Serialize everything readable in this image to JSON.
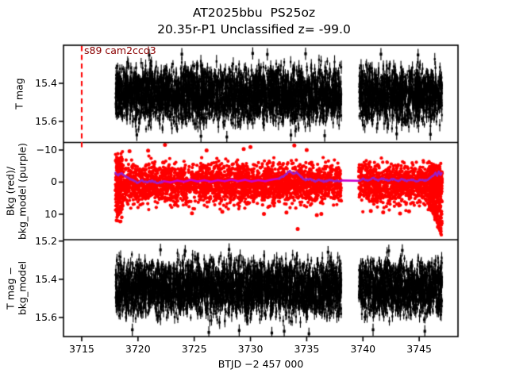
{
  "chart_data": {
    "type": "scatter",
    "title_lines": [
      "AT2025bbu  PS25oz",
      "20.35r-P1 Unclassified z= -99.0"
    ],
    "xlabel": "BTJD −2 457 000",
    "xlim": [
      3713.38,
      3748.45
    ],
    "xticks": [
      3715,
      3720,
      3725,
      3730,
      3735,
      3740,
      3745
    ],
    "xtick_labels": [
      "3715",
      "3720",
      "3725",
      "3730",
      "3735",
      "3740",
      "3745"
    ],
    "grid": false,
    "legend": "none",
    "seed": 1337,
    "segments": [
      [
        3718.0,
        3738.08
      ],
      [
        3739.63,
        3747.04
      ]
    ],
    "panels": [
      {
        "name": "tess-magnitude",
        "ylabel_lines": [
          "T mag"
        ],
        "ylim": [
          15.2,
          15.71
        ],
        "y_inverted": true,
        "yticks": [
          15.4,
          15.6
        ],
        "ytick_labels": [
          "15.4",
          "15.6"
        ],
        "series": {
          "color": "#000000",
          "marker": "point-with-errorbar",
          "center": 15.462,
          "half_width": 0.235,
          "band_half_width": 0.19,
          "n": [
            3300,
            1200
          ],
          "errorbar_mag": 0.02
        },
        "outliers": [
          [
            3721.0,
            15.252
          ],
          [
            3723.9,
            15.247
          ],
          [
            3730.2,
            15.243
          ],
          [
            3731.5,
            15.248
          ],
          [
            3727.9,
            15.682
          ],
          [
            3733.6,
            15.672
          ],
          [
            3741.6,
            15.247
          ],
          [
            3744.9,
            15.251
          ],
          [
            3736.6,
            15.675
          ],
          [
            3746.0,
            15.668
          ],
          [
            3725.6,
            15.678
          ],
          [
            3719.9,
            15.671
          ],
          [
            3734.9,
            15.245
          ],
          [
            3743.0,
            15.666
          ]
        ],
        "annotation": {
          "text": "s89 cam2ccd3",
          "color": "#8b0000",
          "x": 3715.1
        },
        "vline": {
          "x": 3715.0,
          "color": "#ff0000",
          "style": "dashed"
        }
      },
      {
        "name": "background",
        "ylabel_lines": [
          "Bkg (red)/",
          "bkg_model (purple)"
        ],
        "ylim": [
          -12.35,
          17.9
        ],
        "yticks": [
          10,
          0,
          -10
        ],
        "ytick_labels": [
          "10",
          "0",
          "−10"
        ],
        "series": {
          "color": "#ff0000",
          "marker": "dot",
          "dot_radius": 2.1,
          "center": 0.4,
          "half_width": 9.0,
          "band_half_width": 7.0,
          "n": [
            3000,
            1100
          ]
        },
        "start_burst": {
          "x_range": [
            3718.0,
            3718.65
          ],
          "y_range": [
            -9.5,
            12.6
          ],
          "n": 150
        },
        "end_rise": {
          "x_range": [
            3745.85,
            3747.05
          ],
          "y_top_start": 7.5,
          "y_top_end": 17.4,
          "y_bottom_start": -6.5,
          "y_bottom_end": -4.0,
          "n": 330
        },
        "outliers": [
          [
            3719.25,
            -9.6
          ],
          [
            3722.4,
            -11.6
          ],
          [
            3722.65,
            -12.7
          ],
          [
            3729.4,
            -10.3
          ],
          [
            3730.0,
            -10.9
          ],
          [
            3733.9,
            -11.4
          ],
          [
            3734.2,
            14.6
          ],
          [
            3735.0,
            -10.0
          ],
          [
            3724.8,
            9.7
          ],
          [
            3727.5,
            9.2
          ],
          [
            3731.2,
            9.9
          ],
          [
            3733.2,
            9.5
          ],
          [
            3735.9,
            10.3
          ],
          [
            3736.3,
            9.9
          ],
          [
            3740.7,
            9.0
          ],
          [
            3741.8,
            9.4
          ],
          [
            3743.3,
            9.8
          ],
          [
            3744.1,
            9.1
          ],
          [
            3720.9,
            -9.8
          ],
          [
            3726.1,
            -9.9
          ]
        ],
        "model_line": {
          "wiggle_color": "#9b20c8",
          "bridge_color": "#cc00cc",
          "linewidth": 2.6,
          "jitter": 0.45,
          "points": [
            [
              3718.0,
              -2.9
            ],
            [
              3718.25,
              -2.1
            ],
            [
              3718.5,
              -2.7
            ],
            [
              3718.8,
              -2.0
            ],
            [
              3719.1,
              -1.4
            ],
            [
              3719.5,
              -0.6
            ],
            [
              3719.9,
              0.2
            ],
            [
              3720.3,
              -0.5
            ],
            [
              3720.8,
              0.1
            ],
            [
              3721.3,
              -0.4
            ],
            [
              3721.8,
              0.3
            ],
            [
              3722.3,
              -0.3
            ],
            [
              3722.9,
              0.1
            ],
            [
              3723.5,
              -0.5
            ],
            [
              3724.1,
              -0.1
            ],
            [
              3724.7,
              -0.7
            ],
            [
              3725.3,
              -0.2
            ],
            [
              3725.9,
              -0.6
            ],
            [
              3726.5,
              -0.1
            ],
            [
              3727.1,
              -0.6
            ],
            [
              3727.7,
              -0.3
            ],
            [
              3728.3,
              -0.8
            ],
            [
              3728.9,
              -0.3
            ],
            [
              3729.5,
              -0.7
            ],
            [
              3730.1,
              -0.2
            ],
            [
              3730.7,
              -0.6
            ],
            [
              3731.3,
              -0.3
            ],
            [
              3731.9,
              -0.8
            ],
            [
              3732.5,
              -1.1
            ],
            [
              3733.0,
              -2.0
            ],
            [
              3733.5,
              -3.5
            ],
            [
              3733.8,
              -2.6
            ],
            [
              3734.1,
              -3.1
            ],
            [
              3734.5,
              -1.6
            ],
            [
              3734.9,
              -0.6
            ],
            [
              3735.3,
              -1.0
            ],
            [
              3735.7,
              -0.3
            ],
            [
              3736.1,
              -0.7
            ],
            [
              3736.6,
              -0.2
            ],
            [
              3737.1,
              -0.6
            ],
            [
              3737.6,
              -0.3
            ],
            [
              3738.08,
              -0.5
            ],
            [
              3739.63,
              -0.4
            ],
            [
              3740.0,
              -1.1
            ],
            [
              3740.4,
              -0.5
            ],
            [
              3740.9,
              -1.3
            ],
            [
              3741.3,
              -0.6
            ],
            [
              3741.8,
              -1.1
            ],
            [
              3742.2,
              -0.5
            ],
            [
              3742.7,
              -1.0
            ],
            [
              3743.1,
              -0.4
            ],
            [
              3743.5,
              -0.9
            ],
            [
              3743.9,
              -0.3
            ],
            [
              3744.3,
              -0.8
            ],
            [
              3744.7,
              -0.3
            ],
            [
              3745.1,
              -0.7
            ],
            [
              3745.5,
              -0.4
            ],
            [
              3745.9,
              -1.1
            ],
            [
              3746.2,
              -1.9
            ],
            [
              3746.45,
              -2.9
            ],
            [
              3746.6,
              -2.0
            ],
            [
              3746.75,
              -3.3
            ],
            [
              3746.9,
              -2.3
            ],
            [
              3747.0,
              -2.8
            ]
          ]
        }
      },
      {
        "name": "detrended-magnitude",
        "ylabel_lines": [
          "T mag −",
          "bkg_model"
        ],
        "ylim": [
          15.193,
          15.701
        ],
        "y_inverted": true,
        "yticks": [
          15.2,
          15.4,
          15.6
        ],
        "ytick_labels": [
          "15.2",
          "15.4",
          "15.6"
        ],
        "series": {
          "color": "#000000",
          "marker": "point-with-errorbar",
          "center": 15.447,
          "half_width": 0.235,
          "band_half_width": 0.19,
          "n": [
            3300,
            1200
          ],
          "errorbar_mag": 0.02
        },
        "outliers": [
          [
            3722.0,
            15.246
          ],
          [
            3726.3,
            15.678
          ],
          [
            3729.0,
            15.668
          ],
          [
            3724.2,
            15.253
          ],
          [
            3733.0,
            15.672
          ],
          [
            3736.9,
            15.258
          ],
          [
            3740.9,
            15.664
          ],
          [
            3743.5,
            15.249
          ],
          [
            3745.5,
            15.672
          ],
          [
            3731.9,
            15.681
          ],
          [
            3719.5,
            15.664
          ],
          [
            3742.3,
            15.251
          ],
          [
            3735.2,
            15.685
          ],
          [
            3728.1,
            15.244
          ]
        ]
      }
    ]
  },
  "layout_hints": {
    "panel_count": 3,
    "shared_x": true,
    "frame_color": "#000000"
  }
}
